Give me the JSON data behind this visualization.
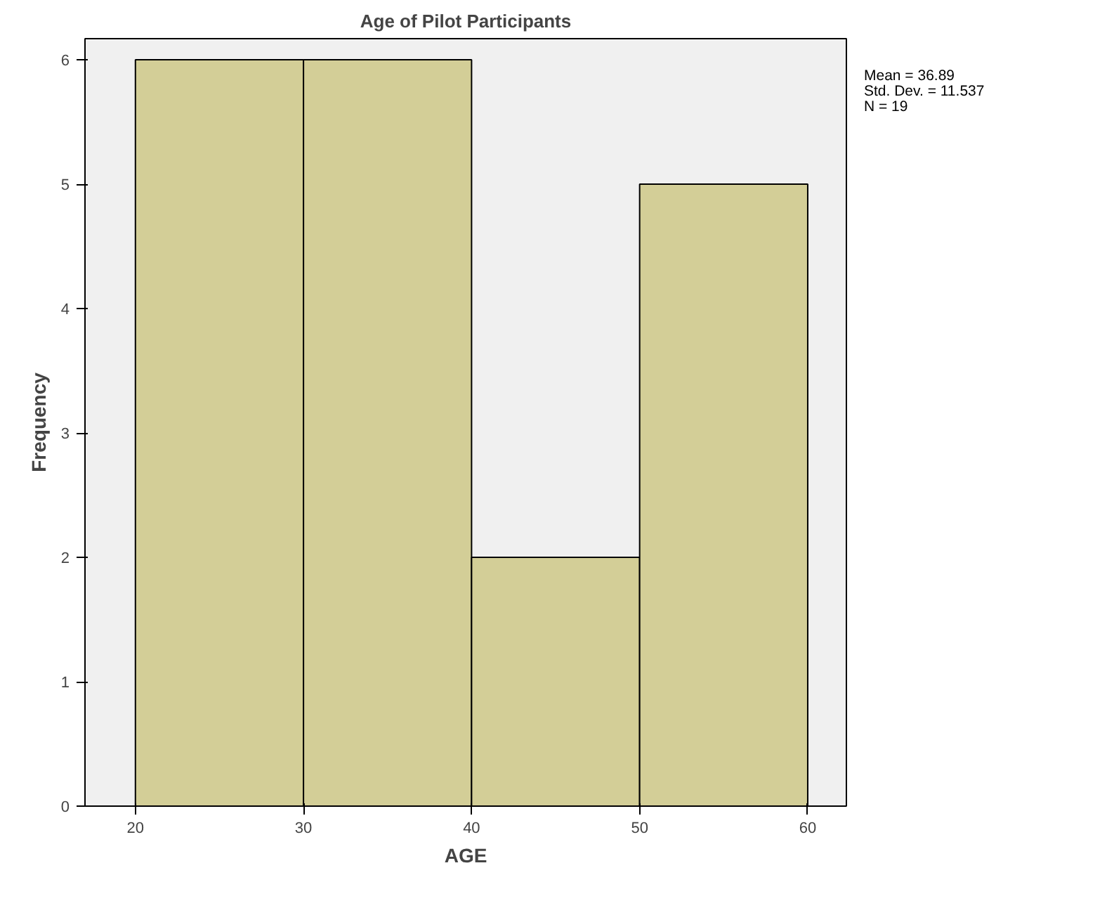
{
  "chart_data": {
    "type": "histogram",
    "title": "Age of Pilot Participants",
    "xlabel": "AGE",
    "ylabel": "Frequency",
    "bins": [
      20,
      30,
      40,
      50,
      60
    ],
    "values": [
      6,
      6,
      2,
      5
    ],
    "color": "#d3ce97",
    "xlim": [
      17,
      62.3
    ],
    "ylim": [
      0,
      6.17
    ],
    "xticks": [
      20,
      30,
      40,
      50,
      60
    ],
    "yticks": [
      0,
      1,
      2,
      3,
      4,
      5,
      6
    ],
    "grid": false,
    "annotations": [
      "Mean = 36.89",
      "Std. Dev. = 11.537",
      "N = 19"
    ]
  }
}
